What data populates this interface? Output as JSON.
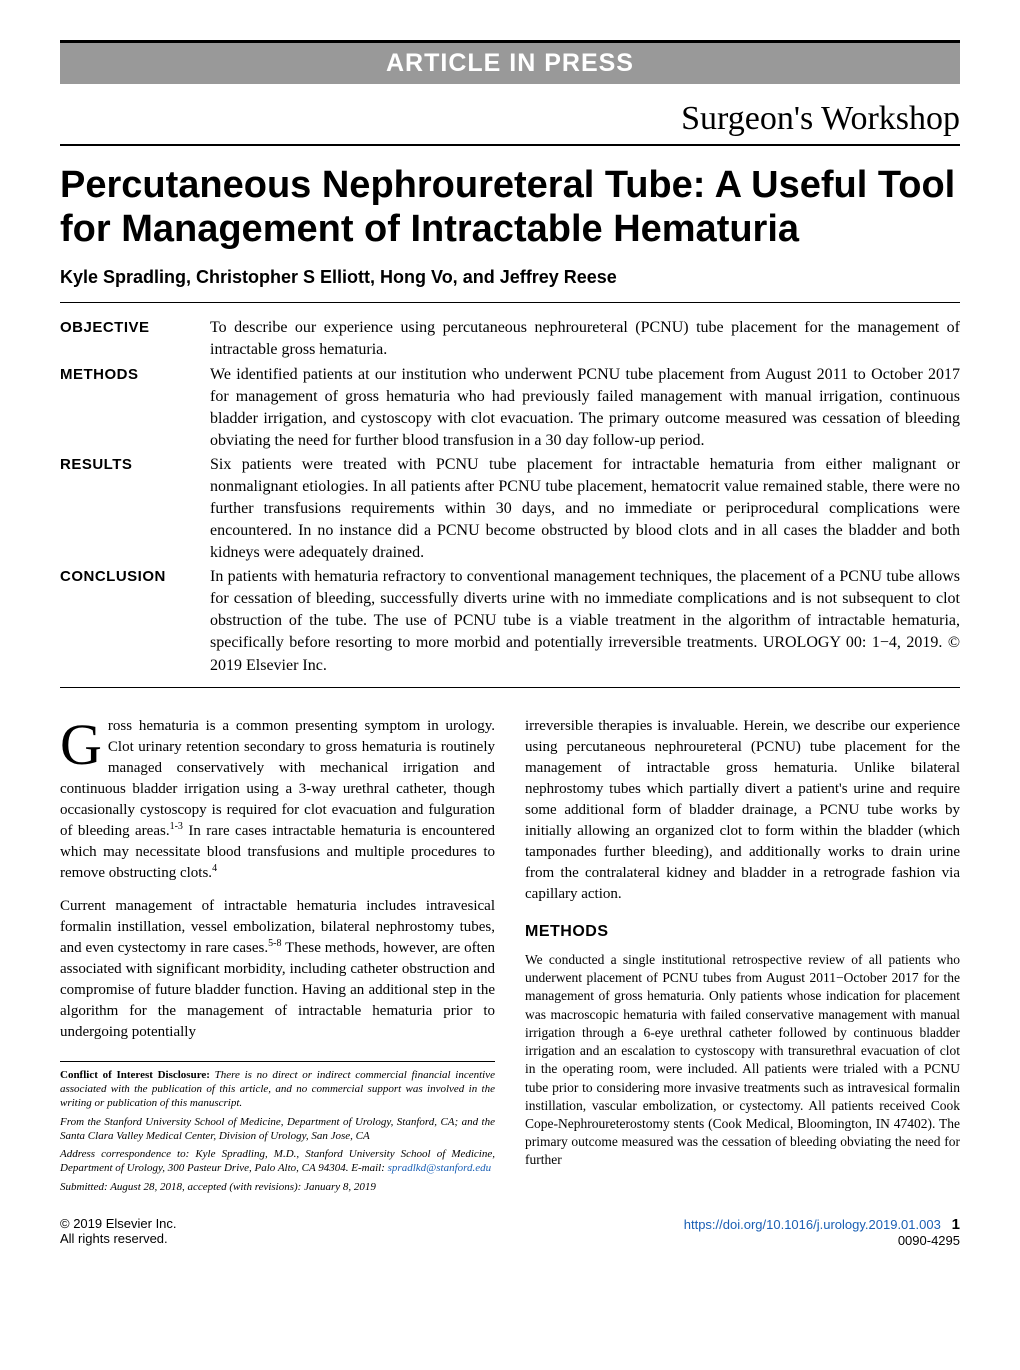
{
  "banner": "ARTICLE IN PRESS",
  "section_label": "Surgeon's Workshop",
  "title": "Percutaneous Nephroureteral Tube: A Useful Tool for Management of Intractable Hematuria",
  "authors": "Kyle Spradling, Christopher S Elliott, Hong Vo, and Jeffrey Reese",
  "abstract": {
    "objective": {
      "label": "OBJECTIVE",
      "text": "To describe our experience using percutaneous nephroureteral (PCNU) tube placement for the management of intractable gross hematuria."
    },
    "methods": {
      "label": "METHODS",
      "text": "We identified patients at our institution who underwent PCNU tube placement from August 2011 to October 2017 for management of gross hematuria who had previously failed management with manual irrigation, continuous bladder irrigation, and cystoscopy with clot evacuation. The primary outcome measured was cessation of bleeding obviating the need for further blood transfusion in a 30 day follow-up period."
    },
    "results": {
      "label": "RESULTS",
      "text": "Six patients were treated with PCNU tube placement for intractable hematuria from either malignant or nonmalignant etiologies. In all patients after PCNU tube placement, hematocrit value remained stable, there were no further transfusions requirements within 30 days, and no immediate or periprocedural complications were encountered. In no instance did a PCNU become obstructed by blood clots and in all cases the bladder and both kidneys were adequately drained."
    },
    "conclusion": {
      "label": "CONCLUSION",
      "text": "In patients with hematuria refractory to conventional management techniques, the placement of a PCNU tube allows for cessation of bleeding, successfully diverts urine with no immediate complications and is not subsequent to clot obstruction of the tube. The use of PCNU tube is a viable treatment in the algorithm of intractable hematuria, specifically before resorting to more morbid and potentially irreversible treatments.   UROLOGY 00: 1−4, 2019. © 2019 Elsevier Inc."
    }
  },
  "body": {
    "col1_p1_dropcap": "G",
    "col1_p1": "ross hematuria is a common presenting symptom in urology. Clot urinary retention secondary to gross hematuria is routinely managed conservatively with mechanical irrigation and continuous bladder irrigation using a 3-way urethral catheter, though occasionally cystoscopy is required for clot evacuation and fulguration of bleeding areas.",
    "col1_p1_tail": " In rare cases intractable hematuria is encountered which may necessitate blood transfusions and multiple procedures to remove obstructing clots.",
    "col1_p2": "Current management of intractable hematuria includes intravesical formalin instillation, vessel embolization, bilateral nephrostomy tubes, and even cystectomy in rare cases.",
    "col1_p2_tail": " These methods, however, are often associated with significant morbidity, including catheter obstruction and compromise of future bladder function. Having an additional step in the algorithm for the management of intractable hematuria prior to undergoing potentially",
    "col2_p1": "irreversible therapies is invaluable. Herein, we describe our experience using percutaneous nephroureteral (PCNU) tube placement for the management of intractable gross hematuria. Unlike bilateral nephrostomy tubes which partially divert a patient's urine and require some additional form of bladder drainage, a PCNU tube works by initially allowing an organized clot to form within the bladder (which tamponades further bleeding), and additionally works to drain urine from the contralateral kidney and bladder in a retrograde fashion via capillary action.",
    "methods_heading": "METHODS",
    "methods_text": "We conducted a single institutional retrospective review of all patients who underwent placement of PCNU tubes from August 2011−October 2017 for the management of gross hematuria. Only patients whose indication for placement was macroscopic hematuria with failed conservative management with manual irrigation through a 6-eye urethral catheter followed by continuous bladder irrigation and an escalation to cystoscopy with transurethral evacuation of clot in the operating room, were included. All patients were trialed with a PCNU tube prior to considering more invasive treatments such as intravesical formalin instillation, vascular embolization, or cystectomy. All patients received Cook Cope-Nephroureterostomy stents (Cook Medical, Bloomington, IN 47402). The primary outcome measured was the cessation of bleeding obviating the need for further"
  },
  "refs": {
    "r1": "1-3",
    "r2": "4",
    "r3": "5-8"
  },
  "footnotes": {
    "conflict_lead": "Conflict of Interest Disclosure:",
    "conflict": " There is no direct or indirect commercial financial incentive associated with the publication of this article, and no commercial support was involved in the writing or publication of this manuscript.",
    "from": "From the Stanford University School of Medicine, Department of Urology, Stanford, CA; and the Santa Clara Valley Medical Center, Division of Urology, San Jose, CA",
    "address": "Address correspondence to: Kyle Spradling, M.D., Stanford University School of Medicine, Department of Urology, 300 Pasteur Drive, Palo Alto, CA 94304. E-mail:",
    "email": "spradlkd@stanford.edu",
    "submitted": "Submitted: August 28, 2018, accepted (with revisions): January 8, 2019"
  },
  "footer": {
    "left1": "© 2019 Elsevier Inc.",
    "left2": "All rights reserved.",
    "doi": "https://doi.org/10.1016/j.urology.2019.01.003",
    "page": "1",
    "issn": "0090-4295"
  },
  "colors": {
    "banner_bg": "#999999",
    "banner_text": "#ffffff",
    "link": "#1a5fb4",
    "text": "#000000"
  }
}
